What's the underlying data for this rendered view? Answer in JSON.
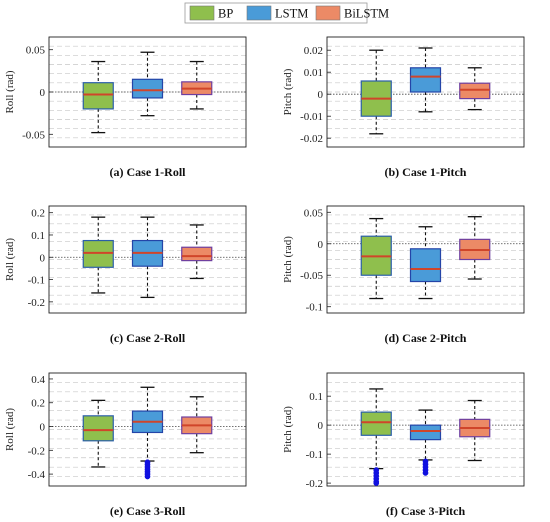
{
  "legend": {
    "items": [
      {
        "name": "BP",
        "color": "#8fbf4d"
      },
      {
        "name": "LSTM",
        "color": "#4a9bd8"
      },
      {
        "name": "BiLSTM",
        "color": "#ec8a66"
      }
    ]
  },
  "colors": {
    "box_edge_bp": "#2b5fa8",
    "box_edge_lstm": "#2445a8",
    "box_edge_bilstm": "#6e3fa0",
    "median": "#d0452a",
    "whisker": "#111111",
    "outlier": "#1010e0",
    "grid": "#c8c8c8"
  },
  "chart_data": [
    {
      "type": "box",
      "caption": "(a) Case 1-Roll",
      "ylabel": "Roll (rad)",
      "ylim": [
        -0.065,
        0.065
      ],
      "yticks": [
        -0.05,
        0,
        0.05
      ],
      "ytick_labels": [
        "-0.05",
        "0",
        "0.05"
      ],
      "grid": true,
      "zero_line": true,
      "categories": [
        "BP",
        "LSTM",
        "BiLSTM"
      ],
      "series": [
        {
          "name": "BP",
          "whisker_low": -0.048,
          "q1": -0.02,
          "median": -0.003,
          "q3": 0.011,
          "whisker_high": 0.036,
          "outliers": []
        },
        {
          "name": "LSTM",
          "whisker_low": -0.028,
          "q1": -0.007,
          "median": 0.002,
          "q3": 0.015,
          "whisker_high": 0.047,
          "outliers": []
        },
        {
          "name": "BiLSTM",
          "whisker_low": -0.02,
          "q1": -0.003,
          "median": 0.004,
          "q3": 0.012,
          "whisker_high": 0.036,
          "outliers": []
        }
      ]
    },
    {
      "type": "box",
      "caption": "(b) Case 1-Pitch",
      "ylabel": "Pitch (rad)",
      "ylim": [
        -0.024,
        0.026
      ],
      "yticks": [
        -0.02,
        -0.01,
        0,
        0.01,
        0.02
      ],
      "ytick_labels": [
        "-0.02",
        "-0.01",
        "0",
        "0.01",
        "0.02"
      ],
      "grid": true,
      "zero_line": true,
      "categories": [
        "BP",
        "LSTM",
        "BiLSTM"
      ],
      "series": [
        {
          "name": "BP",
          "whisker_low": -0.018,
          "q1": -0.01,
          "median": -0.002,
          "q3": 0.006,
          "whisker_high": 0.02,
          "outliers": []
        },
        {
          "name": "LSTM",
          "whisker_low": -0.008,
          "q1": 0.001,
          "median": 0.008,
          "q3": 0.012,
          "whisker_high": 0.021,
          "outliers": []
        },
        {
          "name": "BiLSTM",
          "whisker_low": -0.007,
          "q1": -0.002,
          "median": 0.002,
          "q3": 0.005,
          "whisker_high": 0.012,
          "outliers": []
        }
      ]
    },
    {
      "type": "box",
      "caption": "(c) Case 2-Roll",
      "ylabel": "Roll (rad)",
      "ylim": [
        -0.25,
        0.23
      ],
      "yticks": [
        -0.2,
        -0.1,
        0,
        0.1,
        0.2
      ],
      "ytick_labels": [
        "-0.2",
        "-0.1",
        "0",
        "0.1",
        "0.2"
      ],
      "grid": true,
      "zero_line": true,
      "categories": [
        "BP",
        "LSTM",
        "BiLSTM"
      ],
      "series": [
        {
          "name": "BP",
          "whisker_low": -0.16,
          "q1": -0.045,
          "median": 0.02,
          "q3": 0.075,
          "whisker_high": 0.18,
          "outliers": []
        },
        {
          "name": "LSTM",
          "whisker_low": -0.18,
          "q1": -0.04,
          "median": 0.02,
          "q3": 0.075,
          "whisker_high": 0.18,
          "outliers": []
        },
        {
          "name": "BiLSTM",
          "whisker_low": -0.095,
          "q1": -0.015,
          "median": 0.005,
          "q3": 0.045,
          "whisker_high": 0.145,
          "outliers": []
        }
      ]
    },
    {
      "type": "box",
      "caption": "(d) Case 2-Pitch",
      "ylabel": "Pitch (rad)",
      "ylim": [
        -0.11,
        0.06
      ],
      "yticks": [
        -0.1,
        -0.05,
        0,
        0.05
      ],
      "ytick_labels": [
        "-0.1",
        "-0.05",
        "0",
        "0.05"
      ],
      "grid": true,
      "zero_line": true,
      "categories": [
        "BP",
        "LSTM",
        "BiLSTM"
      ],
      "series": [
        {
          "name": "BP",
          "whisker_low": -0.087,
          "q1": -0.05,
          "median": -0.02,
          "q3": 0.012,
          "whisker_high": 0.04,
          "outliers": []
        },
        {
          "name": "LSTM",
          "whisker_low": -0.087,
          "q1": -0.06,
          "median": -0.04,
          "q3": -0.008,
          "whisker_high": 0.027,
          "outliers": []
        },
        {
          "name": "BiLSTM",
          "whisker_low": -0.056,
          "q1": -0.025,
          "median": -0.01,
          "q3": 0.007,
          "whisker_high": 0.043,
          "outliers": []
        }
      ]
    },
    {
      "type": "box",
      "caption": "(e) Case 3-Roll",
      "ylabel": "Roll (rad)",
      "ylim": [
        -0.5,
        0.45
      ],
      "yticks": [
        -0.4,
        -0.2,
        0,
        0.2,
        0.4
      ],
      "ytick_labels": [
        "-0.4",
        "-0.2",
        "0",
        "0.2",
        "0.4"
      ],
      "grid": true,
      "zero_line": true,
      "categories": [
        "BP",
        "LSTM",
        "BiLSTM"
      ],
      "series": [
        {
          "name": "BP",
          "whisker_low": -0.34,
          "q1": -0.12,
          "median": -0.03,
          "q3": 0.09,
          "whisker_high": 0.22,
          "outliers": []
        },
        {
          "name": "LSTM",
          "whisker_low": -0.29,
          "q1": -0.05,
          "median": 0.04,
          "q3": 0.13,
          "whisker_high": 0.33,
          "outliers": [
            -0.3,
            -0.32,
            -0.34,
            -0.36,
            -0.38,
            -0.4,
            -0.42
          ]
        },
        {
          "name": "BiLSTM",
          "whisker_low": -0.22,
          "q1": -0.06,
          "median": 0.01,
          "q3": 0.08,
          "whisker_high": 0.25,
          "outliers": []
        }
      ]
    },
    {
      "type": "box",
      "caption": "(f) Case 3-Pitch",
      "ylabel": "Pitch (rad)",
      "ylim": [
        -0.21,
        0.18
      ],
      "yticks": [
        -0.2,
        -0.1,
        0,
        0.1
      ],
      "ytick_labels": [
        "-0.2",
        "-0.1",
        "0",
        "0.1"
      ],
      "grid": true,
      "zero_line": true,
      "categories": [
        "BP",
        "LSTM",
        "BiLSTM"
      ],
      "series": [
        {
          "name": "BP",
          "whisker_low": -0.15,
          "q1": -0.035,
          "median": 0.01,
          "q3": 0.045,
          "whisker_high": 0.125,
          "outliers": [
            -0.155,
            -0.165,
            -0.175,
            -0.185,
            -0.195,
            -0.2
          ]
        },
        {
          "name": "LSTM",
          "whisker_low": -0.12,
          "q1": -0.05,
          "median": -0.02,
          "q3": 0.0,
          "whisker_high": 0.052,
          "outliers": [
            -0.125,
            -0.135,
            -0.145,
            -0.155,
            -0.165
          ]
        },
        {
          "name": "BiLSTM",
          "whisker_low": -0.122,
          "q1": -0.04,
          "median": -0.01,
          "q3": 0.02,
          "whisker_high": 0.085,
          "outliers": []
        }
      ]
    }
  ]
}
